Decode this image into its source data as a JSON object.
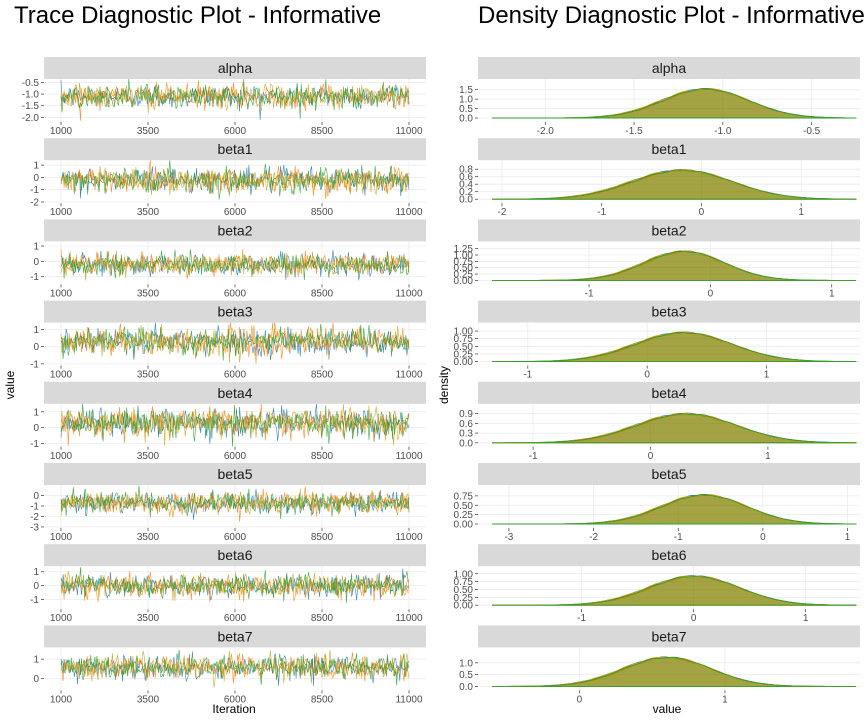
{
  "chart_data": [
    {
      "type": "line",
      "title": "Trace Diagnostic Plot - Informative",
      "xlabel": "Iteration",
      "ylabel": "value",
      "xlim": [
        1000,
        11000
      ],
      "x_ticks": [
        "1000",
        "3500",
        "6000",
        "8500",
        "11000"
      ],
      "chain_colors": [
        "#1f77b4",
        "#ff7f0e",
        "#d4a017",
        "#2ca02c"
      ],
      "grid": true,
      "panels": [
        {
          "name": "alpha",
          "mean": -1.1,
          "sd": 0.25,
          "ylim": [
            -2.2,
            -0.35
          ],
          "y_ticks": [
            "-0.5",
            "-1.0",
            "-1.5",
            "-2.0"
          ]
        },
        {
          "name": "beta1",
          "mean": -0.2,
          "sd": 0.5,
          "ylim": [
            -2.1,
            1.4
          ],
          "y_ticks": [
            "1",
            "0",
            "-1",
            "-2"
          ]
        },
        {
          "name": "beta2",
          "mean": -0.2,
          "sd": 0.35,
          "ylim": [
            -1.5,
            1.3
          ],
          "y_ticks": [
            "1",
            "0",
            "-1"
          ]
        },
        {
          "name": "beta3",
          "mean": 0.3,
          "sd": 0.4,
          "ylim": [
            -1.1,
            1.4
          ],
          "y_ticks": [
            "1",
            "0",
            "-1"
          ]
        },
        {
          "name": "beta4",
          "mean": 0.3,
          "sd": 0.42,
          "ylim": [
            -1.2,
            1.5
          ],
          "y_ticks": [
            "1",
            "0",
            "-1"
          ]
        },
        {
          "name": "beta5",
          "mean": -0.7,
          "sd": 0.5,
          "ylim": [
            -3.1,
            1.0
          ],
          "y_ticks": [
            "0",
            "-1",
            "-2",
            "-3"
          ]
        },
        {
          "name": "beta6",
          "mean": 0.0,
          "sd": 0.4,
          "ylim": [
            -1.7,
            1.4
          ],
          "y_ticks": [
            "1",
            "0",
            "-1"
          ]
        },
        {
          "name": "beta7",
          "mean": 0.6,
          "sd": 0.3,
          "ylim": [
            -0.6,
            1.6
          ],
          "y_ticks": [
            "1",
            "0"
          ]
        }
      ]
    },
    {
      "type": "area",
      "title": "Density Diagnostic Plot - Informative",
      "xlabel": "value",
      "ylabel": "density",
      "fill_color": "#808000",
      "chain_colors": [
        "#1f77b4",
        "#ff7f0e",
        "#d4a017",
        "#2ca02c"
      ],
      "grid": true,
      "panels": [
        {
          "name": "alpha",
          "mean": -1.1,
          "sd": 0.24,
          "xlim": [
            -2.3,
            -0.25
          ],
          "x_ticks": [
            "-2.0",
            "-1.5",
            "-1.0",
            "-0.5"
          ],
          "ylim": [
            0,
            1.75
          ],
          "y_ticks": [
            "1.5",
            "1.0",
            "0.5",
            "0.0"
          ]
        },
        {
          "name": "beta1",
          "mean": -0.2,
          "sd": 0.5,
          "xlim": [
            -2.1,
            1.55
          ],
          "x_ticks": [
            "-2",
            "-1",
            "0",
            "1"
          ],
          "ylim": [
            0,
            0.88
          ],
          "y_ticks": [
            "0.8",
            "0.6",
            "0.4",
            "0.2",
            "0.0"
          ]
        },
        {
          "name": "beta2",
          "mean": -0.22,
          "sd": 0.33,
          "xlim": [
            -1.8,
            1.2
          ],
          "x_ticks": [
            "-1",
            "0",
            "1"
          ],
          "ylim": [
            0,
            1.3
          ],
          "y_ticks": [
            "1.25",
            "1.00",
            "0.75",
            "0.50",
            "0.25",
            "0.00"
          ]
        },
        {
          "name": "beta3",
          "mean": 0.3,
          "sd": 0.4,
          "xlim": [
            -1.3,
            1.75
          ],
          "x_ticks": [
            "-1",
            "0",
            "1"
          ],
          "ylim": [
            0,
            1.08
          ],
          "y_ticks": [
            "1.00",
            "0.75",
            "0.50",
            "0.25",
            "0.00"
          ]
        },
        {
          "name": "beta4",
          "mean": 0.3,
          "sd": 0.42,
          "xlim": [
            -1.35,
            1.75
          ],
          "x_ticks": [
            "-1",
            "0",
            "1"
          ],
          "ylim": [
            0,
            1.02
          ],
          "y_ticks": [
            "0.9",
            "0.6",
            "0.3",
            "0.0"
          ]
        },
        {
          "name": "beta5",
          "mean": -0.7,
          "sd": 0.5,
          "xlim": [
            -3.2,
            1.1
          ],
          "x_ticks": [
            "-3",
            "-2",
            "-1",
            "0",
            "1"
          ],
          "ylim": [
            0,
            0.88
          ],
          "y_ticks": [
            "0.75",
            "0.50",
            "0.25",
            "0.00"
          ]
        },
        {
          "name": "beta6",
          "mean": 0.0,
          "sd": 0.4,
          "xlim": [
            -1.8,
            1.45
          ],
          "x_ticks": [
            "-1",
            "0",
            "1"
          ],
          "ylim": [
            0,
            1.05
          ],
          "y_ticks": [
            "1.00",
            "0.75",
            "0.50",
            "0.25",
            "0.00"
          ]
        },
        {
          "name": "beta7",
          "mean": 0.6,
          "sd": 0.3,
          "xlim": [
            -0.6,
            1.9
          ],
          "x_ticks": [
            "0",
            "1"
          ],
          "ylim": [
            0,
            1.4
          ],
          "y_ticks": [
            "1.0",
            "0.5",
            "0.0"
          ]
        }
      ]
    }
  ]
}
